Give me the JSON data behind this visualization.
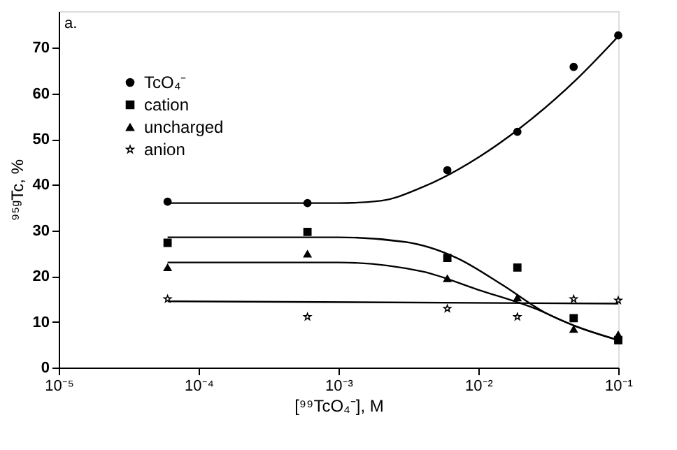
{
  "chart_data": {
    "type": "scatter",
    "xlabel": "[⁹⁹TcO₄⁻], M",
    "ylabel": "⁹⁵ᵍTc, %",
    "annotations": [
      "a."
    ],
    "log": "x",
    "xlim": [
      1e-05,
      0.1
    ],
    "xticks": [
      {
        "value": 1e-05,
        "label": "10⁻⁵"
      },
      {
        "value": 0.0001,
        "label": "10⁻⁴"
      },
      {
        "value": 0.001,
        "label": "10⁻³"
      },
      {
        "value": 0.01,
        "label": "10⁻²"
      },
      {
        "value": 0.1,
        "label": "10⁻¹"
      }
    ],
    "ylim": [
      0,
      78
    ],
    "yticks": [
      0,
      10,
      20,
      30,
      40,
      50,
      60,
      70
    ],
    "grid": false,
    "legend": "top left",
    "x": [
      6e-05,
      0.0006,
      0.006,
      0.019,
      0.048,
      0.1
    ],
    "series": [
      {
        "name": "TcO₄⁻",
        "color": "#000000",
        "marker": "circle",
        "values": [
          36.3,
          36,
          43.2,
          51.6,
          65.8,
          72.7
        ]
      },
      {
        "name": "cation",
        "color": "#000000",
        "marker": "square",
        "values": [
          27.3,
          29.7,
          24,
          21.9,
          10.8,
          6
        ]
      },
      {
        "name": "uncharged",
        "color": "#000000",
        "marker": "triangle",
        "values": [
          21.9,
          24.9,
          19.5,
          15.3,
          8.4,
          7.2
        ]
      },
      {
        "name": "anion",
        "color": "#000000",
        "marker": "star",
        "values": [
          15,
          11.1,
          12.9,
          11.1,
          15,
          14.7
        ]
      },
      {
        "type": "line",
        "color": "#000000",
        "marker": "none",
        "x": [
          6e-05,
          0.001,
          0.002,
          0.004,
          0.01,
          0.02,
          0.05,
          0.1
        ],
        "values": [
          36,
          36,
          36.5,
          39.5,
          46,
          52.5,
          63,
          72.5
        ]
      },
      {
        "type": "line",
        "color": "#000000",
        "marker": "none",
        "x": [
          6e-05,
          0.001,
          0.003,
          0.007,
          0.015,
          0.03,
          0.05,
          0.1
        ],
        "values": [
          28.5,
          28.5,
          27.5,
          24,
          18,
          12,
          9,
          6
        ]
      },
      {
        "type": "line",
        "color": "#000000",
        "marker": "none",
        "x": [
          6e-05,
          0.001,
          0.004,
          0.01,
          0.025,
          0.05,
          0.1
        ],
        "values": [
          23,
          23,
          21,
          17,
          13,
          9,
          6
        ]
      },
      {
        "type": "line",
        "color": "#000000",
        "marker": "none",
        "x": [
          6e-05,
          0.1
        ],
        "values": [
          14.5,
          14
        ]
      }
    ]
  }
}
